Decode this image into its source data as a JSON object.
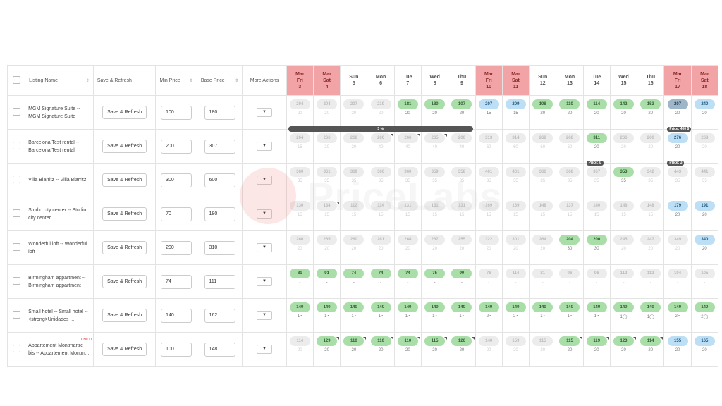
{
  "header": {
    "listing_name": "Listing Name",
    "save_refresh": "Save & Refresh",
    "min_price": "Min Price",
    "base_price": "Base Price",
    "more_actions": "More Actions"
  },
  "sort_icon": "⇕",
  "dropdown_icon": "▼",
  "days": [
    {
      "m": "Mar",
      "d": "Fri",
      "n": "3",
      "wk": true
    },
    {
      "m": "Mar",
      "d": "Sat",
      "n": "4",
      "wk": true
    },
    {
      "m": "",
      "d": "Sun",
      "n": "5",
      "wk": false
    },
    {
      "m": "",
      "d": "Mon",
      "n": "6",
      "wk": false
    },
    {
      "m": "",
      "d": "Tue",
      "n": "7",
      "wk": false
    },
    {
      "m": "",
      "d": "Wed",
      "n": "8",
      "wk": false
    },
    {
      "m": "",
      "d": "Thu",
      "n": "9",
      "wk": false
    },
    {
      "m": "Mar",
      "d": "Fri",
      "n": "10",
      "wk": true
    },
    {
      "m": "Mar",
      "d": "Sat",
      "n": "11",
      "wk": true
    },
    {
      "m": "",
      "d": "Sun",
      "n": "12",
      "wk": false
    },
    {
      "m": "",
      "d": "Mon",
      "n": "13",
      "wk": false
    },
    {
      "m": "",
      "d": "Tue",
      "n": "14",
      "wk": false
    },
    {
      "m": "",
      "d": "Wed",
      "n": "15",
      "wk": false
    },
    {
      "m": "",
      "d": "Thu",
      "n": "16",
      "wk": false
    },
    {
      "m": "Mar",
      "d": "Fri",
      "n": "17",
      "wk": true
    },
    {
      "m": "Mar",
      "d": "Sat",
      "n": "18",
      "wk": true
    }
  ],
  "rows": [
    {
      "name": "MGM Signature Suite -- MGM Signature Suite",
      "min": "100",
      "base": "180",
      "child": "",
      "cells": [
        [
          "204",
          "20",
          "g",
          0
        ],
        [
          "204",
          "20",
          "g",
          0
        ],
        [
          "207",
          "20",
          "g",
          0
        ],
        [
          "219",
          "20",
          "g",
          0
        ],
        [
          "181",
          "20",
          "green",
          0
        ],
        [
          "180",
          "20",
          "green",
          0
        ],
        [
          "107",
          "20",
          "green",
          0
        ],
        [
          "207",
          "15",
          "blue",
          0
        ],
        [
          "209",
          "15",
          "blue",
          0
        ],
        [
          "108",
          "20",
          "green",
          0
        ],
        [
          "110",
          "20",
          "green",
          0
        ],
        [
          "114",
          "20",
          "green",
          0
        ],
        [
          "142",
          "20",
          "green",
          0
        ],
        [
          "153",
          "20",
          "green",
          0
        ],
        [
          "207",
          "20",
          "sel",
          0
        ],
        [
          "240",
          "20",
          "blue",
          0
        ]
      ],
      "bars": [
        {
          "text": "3 ℅",
          "from": 0,
          "to": 6
        }
      ],
      "tags": [
        {
          "text": "Price: 400 $",
          "col": 14,
          "w": 2
        }
      ]
    },
    {
      "name": "Barcelona Test rental -- Barcelona Test rental",
      "min": "200",
      "base": "307",
      "child": "",
      "cells": [
        [
          "264",
          "15",
          "g",
          0
        ],
        [
          "266",
          "20",
          "g",
          0
        ],
        [
          "268",
          "20",
          "g",
          0
        ],
        [
          "260",
          "40",
          "g",
          1
        ],
        [
          "266",
          "40",
          "g",
          1
        ],
        [
          "265",
          "40",
          "g",
          1
        ],
        [
          "200",
          "40",
          "g",
          0
        ],
        [
          "313",
          "60",
          "g",
          0
        ],
        [
          "314",
          "60",
          "g",
          0
        ],
        [
          "268",
          "60",
          "g",
          0
        ],
        [
          "268",
          "60",
          "g",
          0
        ],
        [
          "311",
          "20",
          "green",
          0
        ],
        [
          "266",
          "20",
          "g",
          0
        ],
        [
          "260",
          "20",
          "g",
          0
        ],
        [
          "276",
          "20",
          "blue",
          0
        ],
        [
          "268",
          "20",
          "g",
          0
        ]
      ],
      "bars": [],
      "tags": [
        {
          "text": "Price: 0",
          "col": 11,
          "w": 1
        },
        {
          "text": "Price: 3",
          "col": 14,
          "w": 1
        }
      ]
    },
    {
      "name": "Villa Biarritz -- Villa Biarritz",
      "min": "300",
      "base": "600",
      "child": "",
      "cells": [
        [
          "360",
          "35",
          "g",
          0
        ],
        [
          "361",
          "35",
          "g",
          0
        ],
        [
          "369",
          "35",
          "g",
          0
        ],
        [
          "360",
          "35",
          "g",
          0
        ],
        [
          "360",
          "35",
          "g",
          0
        ],
        [
          "359",
          "35",
          "g",
          0
        ],
        [
          "358",
          "35",
          "g",
          0
        ],
        [
          "461",
          "35",
          "g",
          0
        ],
        [
          "461",
          "35",
          "g",
          0
        ],
        [
          "366",
          "35",
          "g",
          0
        ],
        [
          "368",
          "35",
          "g",
          0
        ],
        [
          "367",
          "35",
          "g",
          0
        ],
        [
          "353",
          "35",
          "green",
          0
        ],
        [
          "342",
          "35",
          "g",
          0
        ],
        [
          "443",
          "35",
          "g",
          0
        ],
        [
          "441",
          "35",
          "g",
          0
        ]
      ],
      "bars": [],
      "tags": []
    },
    {
      "name": "Studio city center -- Studio city center",
      "min": "70",
      "base": "180",
      "child": "",
      "cells": [
        [
          "130",
          "15",
          "g",
          0
        ],
        [
          "134",
          "15",
          "g",
          1
        ],
        [
          "112",
          "15",
          "g",
          0
        ],
        [
          "114",
          "15",
          "g",
          0
        ],
        [
          "131",
          "15",
          "g",
          0
        ],
        [
          "131",
          "15",
          "g",
          0
        ],
        [
          "131",
          "15",
          "g",
          0
        ],
        [
          "169",
          "15",
          "g",
          0
        ],
        [
          "169",
          "15",
          "g",
          0
        ],
        [
          "148",
          "15",
          "g",
          0
        ],
        [
          "137",
          "15",
          "g",
          0
        ],
        [
          "140",
          "15",
          "g",
          0
        ],
        [
          "148",
          "15",
          "g",
          0
        ],
        [
          "148",
          "15",
          "g",
          0
        ],
        [
          "179",
          "20",
          "blue",
          0
        ],
        [
          "191",
          "20",
          "blue",
          0
        ]
      ],
      "bars": [],
      "tags": []
    },
    {
      "name": "Wonderful loft -- Wonderful loft",
      "min": "200",
      "base": "310",
      "child": "",
      "cells": [
        [
          "260",
          "20",
          "g",
          0
        ],
        [
          "265",
          "20",
          "g",
          0
        ],
        [
          "260",
          "20",
          "g",
          0
        ],
        [
          "261",
          "20",
          "g",
          0
        ],
        [
          "264",
          "20",
          "g",
          0
        ],
        [
          "267",
          "20",
          "g",
          0
        ],
        [
          "255",
          "20",
          "g",
          0
        ],
        [
          "322",
          "20",
          "g",
          0
        ],
        [
          "301",
          "20",
          "g",
          0
        ],
        [
          "264",
          "20",
          "g",
          0
        ],
        [
          "204",
          "30",
          "green",
          0
        ],
        [
          "200",
          "30",
          "green",
          0
        ],
        [
          "245",
          "20",
          "g",
          0
        ],
        [
          "247",
          "20",
          "g",
          0
        ],
        [
          "349",
          "20",
          "g",
          0
        ],
        [
          "340",
          "20",
          "blue",
          0
        ]
      ],
      "bars": [],
      "tags": []
    },
    {
      "name": "Birmingham appartment -- Birmingham appartment",
      "min": "74",
      "base": "111",
      "child": "",
      "cells": [
        [
          "81",
          "-",
          "green",
          0
        ],
        [
          "91",
          "-",
          "green",
          0
        ],
        [
          "74",
          "-",
          "green",
          0
        ],
        [
          "74",
          "-",
          "green",
          0
        ],
        [
          "74",
          "-",
          "green",
          0
        ],
        [
          "75",
          "-",
          "green",
          0
        ],
        [
          "90",
          "-",
          "green",
          0
        ],
        [
          "76",
          "-",
          "g",
          0
        ],
        [
          "114",
          "-",
          "g",
          0
        ],
        [
          "81",
          "-",
          "g",
          0
        ],
        [
          "96",
          "-",
          "g",
          0
        ],
        [
          "96",
          "-",
          "g",
          0
        ],
        [
          "112",
          "-",
          "g",
          0
        ],
        [
          "112",
          "-",
          "g",
          0
        ],
        [
          "104",
          "-",
          "g",
          0
        ],
        [
          "105",
          "-",
          "g",
          0
        ]
      ],
      "bars": [],
      "tags": []
    },
    {
      "name": "Small hotel -- Small hotel -- <strong>Unidades ...",
      "min": "140",
      "base": "162",
      "child": "",
      "cells": [
        [
          "140",
          "1◔",
          "green",
          0
        ],
        [
          "140",
          "1◔",
          "green",
          0
        ],
        [
          "140",
          "1◔",
          "green",
          0
        ],
        [
          "140",
          "1◔",
          "green",
          0
        ],
        [
          "140",
          "1◔",
          "green",
          0
        ],
        [
          "140",
          "1◔",
          "green",
          0
        ],
        [
          "140",
          "1◔",
          "green",
          0
        ],
        [
          "140",
          "2◔",
          "green",
          0
        ],
        [
          "140",
          "2◔",
          "green",
          0
        ],
        [
          "140",
          "1◔",
          "green",
          0
        ],
        [
          "140",
          "1◔",
          "green",
          0
        ],
        [
          "140",
          "1◔",
          "green",
          0
        ],
        [
          "140",
          "1◯",
          "green",
          0
        ],
        [
          "140",
          "1◯",
          "green",
          0
        ],
        [
          "140",
          "2◔",
          "green",
          0
        ],
        [
          "140",
          "2◯",
          "green",
          0
        ]
      ],
      "bars": [],
      "tags": []
    },
    {
      "name": "Appartement Montmartre bis -- Appartement Montm...",
      "min": "100",
      "base": "148",
      "child": "CHILD",
      "cells": [
        [
          "114",
          "20",
          "g",
          0
        ],
        [
          "129",
          "20",
          "green",
          1
        ],
        [
          "110",
          "20",
          "green",
          1
        ],
        [
          "110",
          "20",
          "green",
          1
        ],
        [
          "110",
          "20",
          "green",
          1
        ],
        [
          "115",
          "20",
          "green",
          1
        ],
        [
          "126",
          "20",
          "green",
          1
        ],
        [
          "140",
          "20",
          "g",
          0
        ],
        [
          "159",
          "20",
          "g",
          0
        ],
        [
          "115",
          "20",
          "g",
          0
        ],
        [
          "115",
          "20",
          "green",
          1
        ],
        [
          "119",
          "20",
          "green",
          1
        ],
        [
          "123",
          "20",
          "green",
          1
        ],
        [
          "114",
          "20",
          "green",
          1
        ],
        [
          "155",
          "20",
          "blue",
          0
        ],
        [
          "165",
          "20",
          "blue",
          0
        ]
      ],
      "bars": [],
      "tags": []
    }
  ],
  "row_button_label": "Save & Refresh",
  "watermark": "PriceLabs"
}
